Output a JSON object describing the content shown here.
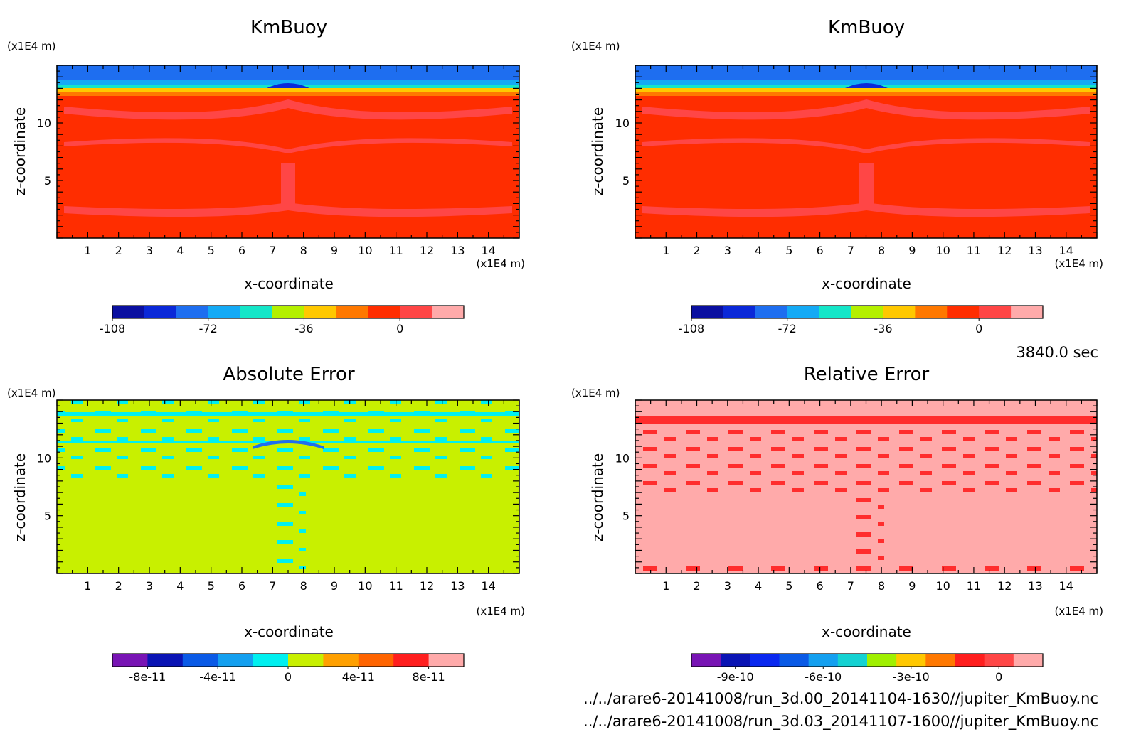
{
  "time_label": "3840.0 sec",
  "files": [
    "../../arare6-20141008/run_3d.00_20141104-1630//jupiter_KmBuoy.nc",
    "../../arare6-20141008/run_3d.03_20141107-1600//jupiter_KmBuoy.nc"
  ],
  "chart_data": [
    {
      "type": "heatmap",
      "title": "KmBuoy",
      "xlabel": "x-coordinate",
      "ylabel": "z-coordinate",
      "x_unit": "(x1E4 m)",
      "y_unit": "(x1E4 m)",
      "xlim": [
        0,
        15
      ],
      "ylim": [
        0,
        15
      ],
      "xticks": [
        1,
        2,
        3,
        4,
        5,
        6,
        7,
        8,
        9,
        10,
        11,
        12,
        13,
        14
      ],
      "yticks": [
        5,
        10
      ],
      "colorbar": {
        "colors": [
          "#0a0fa0",
          "#0a28d8",
          "#1e6ef0",
          "#14aaf5",
          "#14e6c8",
          "#b4f000",
          "#ffc800",
          "#ff7800",
          "#ff2d00",
          "#ff4646",
          "#ffaaaa"
        ],
        "tick_labels": [
          "-108",
          "-72",
          "-36",
          "0"
        ],
        "tick_values": [
          -108,
          -72,
          -36,
          0
        ],
        "range": [
          -108,
          24
        ]
      },
      "fields": [
        {
          "level": "red",
          "z_range": [
            0,
            12.4
          ],
          "description_value": "approximately 0 to 12"
        },
        {
          "level": "orange-yellow",
          "z_range": [
            12.4,
            13.2
          ]
        },
        {
          "level": "blue",
          "z_range": [
            13.2,
            15
          ]
        }
      ]
    },
    {
      "type": "heatmap",
      "title": "KmBuoy",
      "xlabel": "x-coordinate",
      "ylabel": "z-coordinate",
      "x_unit": "(x1E4 m)",
      "y_unit": "(x1E4 m)",
      "xlim": [
        0,
        15
      ],
      "ylim": [
        0,
        15
      ],
      "xticks": [
        1,
        2,
        3,
        4,
        5,
        6,
        7,
        8,
        9,
        10,
        11,
        12,
        13,
        14
      ],
      "yticks": [
        5,
        10
      ],
      "colorbar": {
        "colors": [
          "#0a0fa0",
          "#0a28d8",
          "#1e6ef0",
          "#14aaf5",
          "#14e6c8",
          "#b4f000",
          "#ffc800",
          "#ff7800",
          "#ff2d00",
          "#ff4646",
          "#ffaaaa"
        ],
        "tick_labels": [
          "-108",
          "-72",
          "-36",
          "0"
        ],
        "tick_values": [
          -108,
          -72,
          -36,
          0
        ],
        "range": [
          -108,
          24
        ]
      }
    },
    {
      "type": "heatmap",
      "title": "Absolute Error",
      "xlabel": "x-coordinate",
      "ylabel": "z-coordinate",
      "x_unit": "(x1E4 m)",
      "y_unit": "(x1E4 m)",
      "xlim": [
        0,
        15
      ],
      "ylim": [
        0,
        15
      ],
      "xticks": [
        1,
        2,
        3,
        4,
        5,
        6,
        7,
        8,
        9,
        10,
        11,
        12,
        13,
        14
      ],
      "yticks": [
        5,
        10
      ],
      "colorbar": {
        "colors": [
          "#7814b4",
          "#0a14b4",
          "#0a5ae6",
          "#14a0f0",
          "#00f0f0",
          "#c8f000",
          "#ffa000",
          "#ff6400",
          "#ff1e1e",
          "#ffaaaa"
        ],
        "tick_labels": [
          "-8e-11",
          "-4e-11",
          "0",
          "4e-11",
          "8e-11"
        ],
        "tick_values": [
          -8e-11,
          -4e-11,
          0,
          4e-11,
          8e-11
        ],
        "range": [
          -1e-10,
          1e-10
        ]
      }
    },
    {
      "type": "heatmap",
      "title": "Relative Error",
      "xlabel": "x-coordinate",
      "ylabel": "z-coordinate",
      "x_unit": "(x1E4 m)",
      "y_unit": "(x1E4 m)",
      "xlim": [
        0,
        15
      ],
      "ylim": [
        0,
        15
      ],
      "xticks": [
        1,
        2,
        3,
        4,
        5,
        6,
        7,
        8,
        9,
        10,
        11,
        12,
        13,
        14
      ],
      "yticks": [
        5,
        10
      ],
      "colorbar": {
        "colors": [
          "#7814b4",
          "#0a14b4",
          "#0a28f0",
          "#0a5ae6",
          "#14a0f0",
          "#14d2d2",
          "#a0f000",
          "#ffc800",
          "#ff7800",
          "#ff1e1e",
          "#ff4646",
          "#ffaaaa"
        ],
        "tick_labels": [
          "-9e-10",
          "-6e-10",
          "-3e-10",
          "0"
        ],
        "tick_values": [
          -9e-10,
          -6e-10,
          -3e-10,
          0
        ],
        "range": [
          -1.05e-09,
          1.5e-10
        ]
      }
    }
  ]
}
